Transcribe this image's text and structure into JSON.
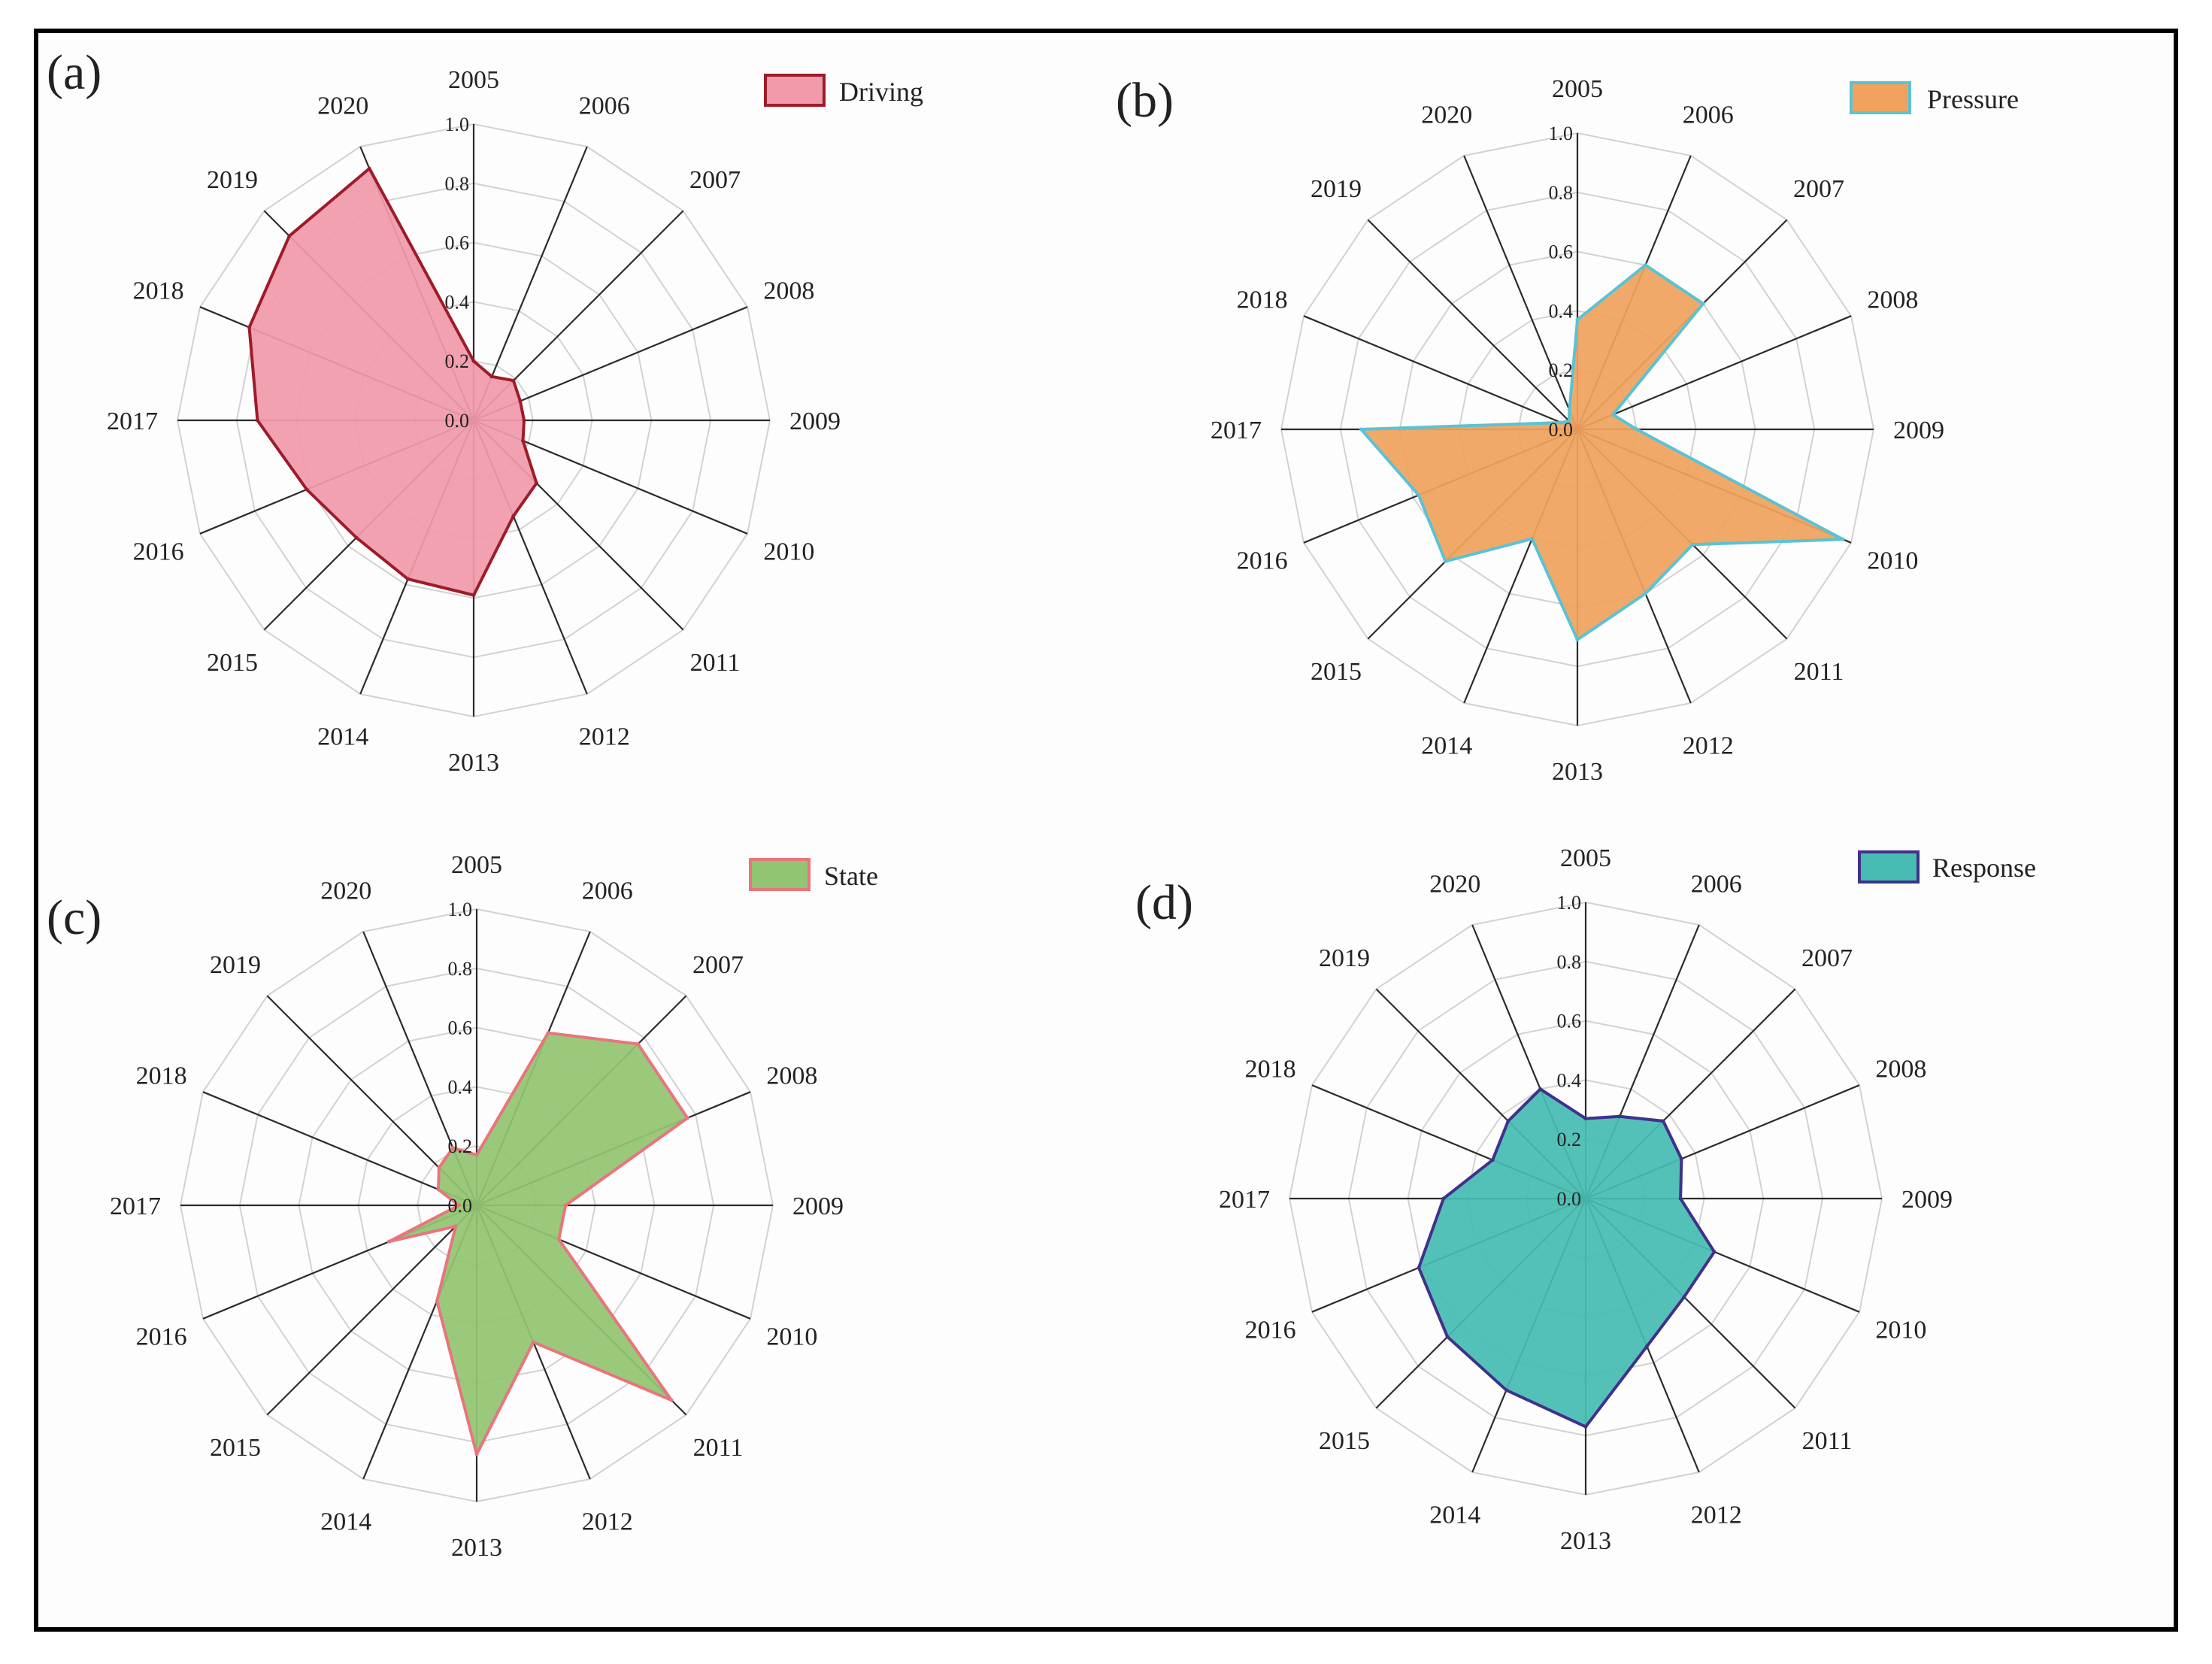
{
  "chart_data": [
    {
      "type": "radar",
      "panel": "(a)",
      "series_name": "Driving",
      "fill": "#f09aaa",
      "stroke": "#9e1b2a",
      "categories": [
        "2005",
        "2006",
        "2007",
        "2008",
        "2009",
        "2010",
        "2011",
        "2012",
        "2013",
        "2014",
        "2015",
        "2016",
        "2017",
        "2018",
        "2019",
        "2020"
      ],
      "values": [
        0.2,
        0.16,
        0.19,
        0.17,
        0.17,
        0.18,
        0.3,
        0.35,
        0.59,
        0.58,
        0.56,
        0.61,
        0.73,
        0.82,
        0.88,
        0.92
      ],
      "ticks": [
        "0.0",
        "0.2",
        "0.4",
        "0.6",
        "0.8",
        "1.0"
      ],
      "range": [
        0,
        1
      ]
    },
    {
      "type": "radar",
      "panel": "(b)",
      "series_name": "Pressure",
      "fill": "#f0a25e",
      "stroke": "#5bc2d4",
      "categories": [
        "2005",
        "2006",
        "2007",
        "2008",
        "2009",
        "2010",
        "2011",
        "2012",
        "2013",
        "2014",
        "2015",
        "2016",
        "2017",
        "2018",
        "2019",
        "2020"
      ],
      "values": [
        0.37,
        0.6,
        0.6,
        0.13,
        0.2,
        0.97,
        0.55,
        0.6,
        0.71,
        0.4,
        0.63,
        0.58,
        0.73,
        0.06,
        0.04,
        0.07
      ],
      "ticks": [
        "0.0",
        "0.2",
        "0.4",
        "0.6",
        "0.8",
        "1.0"
      ],
      "range": [
        0,
        1
      ]
    },
    {
      "type": "radar",
      "panel": "(c)",
      "series_name": "State",
      "fill": "#92c572",
      "stroke": "#e8757d",
      "categories": [
        "2005",
        "2006",
        "2007",
        "2008",
        "2009",
        "2010",
        "2011",
        "2012",
        "2013",
        "2014",
        "2015",
        "2016",
        "2017",
        "2018",
        "2019",
        "2020"
      ],
      "values": [
        0.17,
        0.63,
        0.77,
        0.77,
        0.3,
        0.3,
        0.93,
        0.5,
        0.84,
        0.35,
        0.1,
        0.32,
        0.06,
        0.14,
        0.18,
        0.21
      ],
      "ticks": [
        "0.0",
        "0.2",
        "0.4",
        "0.6",
        "0.8",
        "1.0"
      ],
      "range": [
        0,
        1
      ]
    },
    {
      "type": "radar",
      "panel": "(d)",
      "series_name": "Response",
      "fill": "#47bcb3",
      "stroke": "#40318a",
      "categories": [
        "2005",
        "2006",
        "2007",
        "2008",
        "2009",
        "2010",
        "2011",
        "2012",
        "2013",
        "2014",
        "2015",
        "2016",
        "2017",
        "2018",
        "2019",
        "2020"
      ],
      "values": [
        0.27,
        0.3,
        0.37,
        0.35,
        0.32,
        0.47,
        0.47,
        0.54,
        0.77,
        0.7,
        0.66,
        0.61,
        0.48,
        0.34,
        0.37,
        0.4
      ],
      "ticks": [
        "0.0",
        "0.2",
        "0.4",
        "0.6",
        "0.8",
        "1.0"
      ],
      "range": [
        0,
        1
      ]
    }
  ]
}
